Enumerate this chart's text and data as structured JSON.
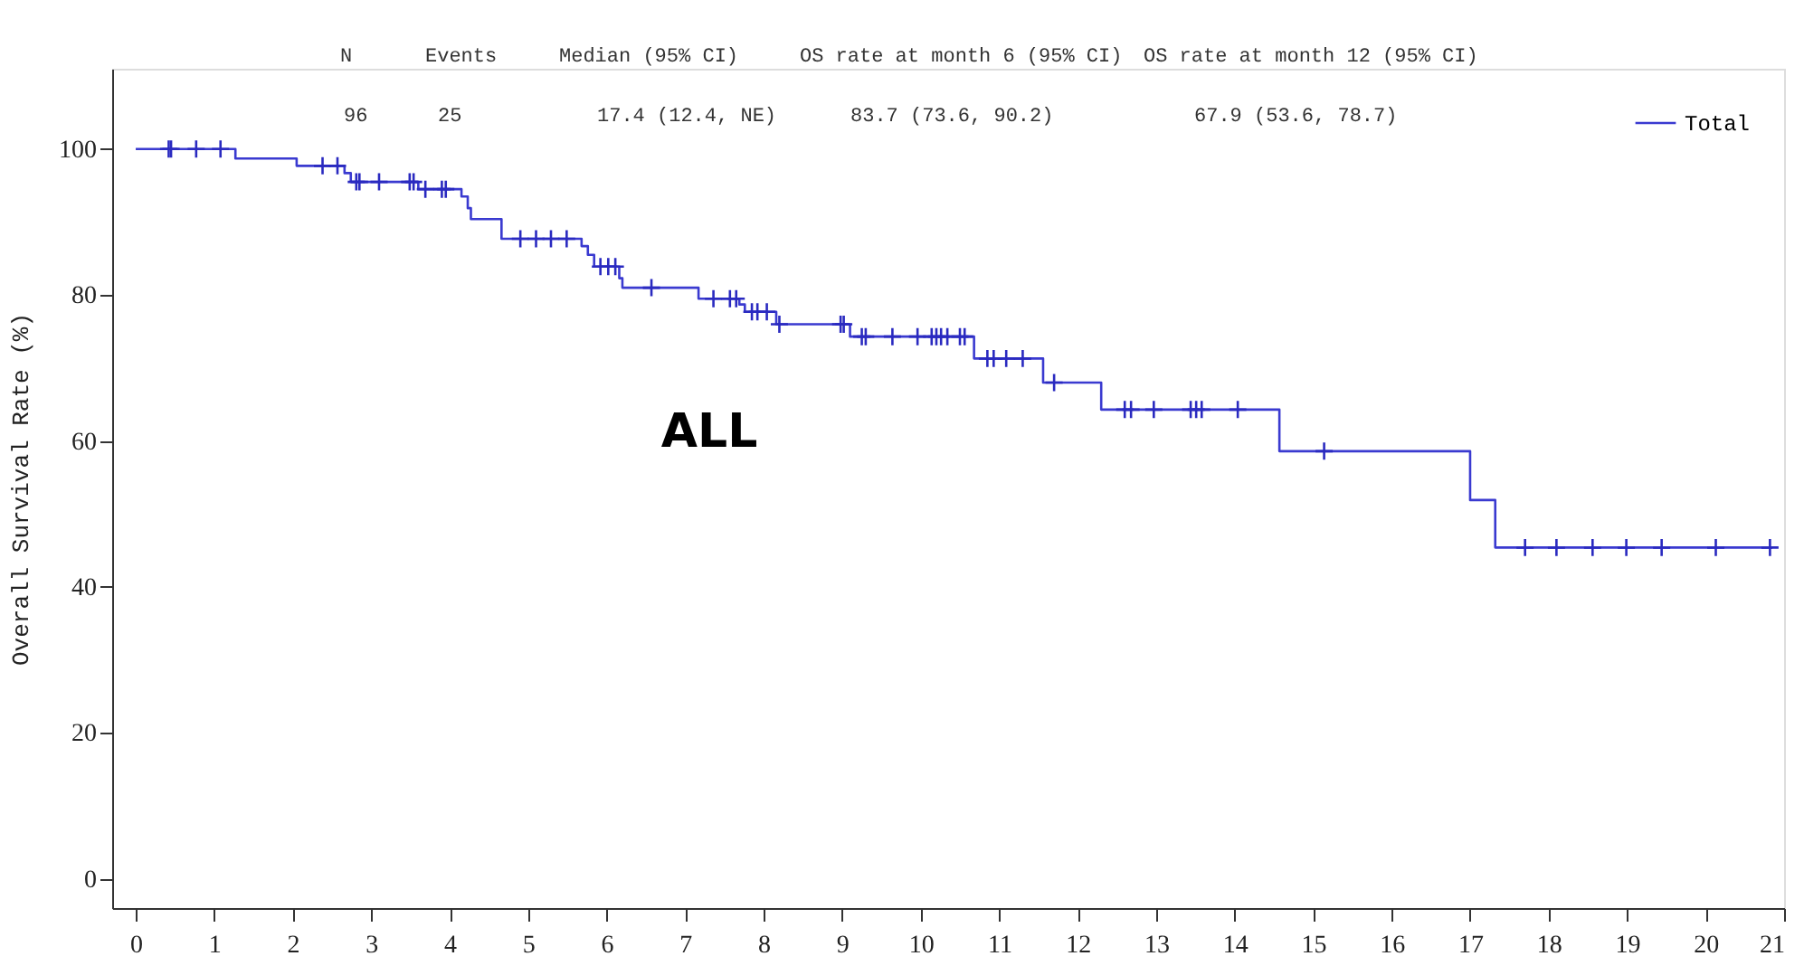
{
  "chart_data": {
    "type": "step",
    "ylabel": "Overall Survival Rate (%)",
    "xlim": [
      -0.3,
      21
    ],
    "xticks": [
      0,
      1,
      2,
      3,
      4,
      5,
      6,
      7,
      8,
      9,
      10,
      11,
      12,
      13,
      14,
      15,
      16,
      17,
      18,
      19,
      20,
      21
    ],
    "ylim": [
      -4,
      111
    ],
    "yticks": [
      0,
      20,
      40,
      60,
      80,
      100
    ],
    "grid": false,
    "legend": "top right",
    "annotations": [
      "N",
      "Events",
      "Median (95% CI)",
      "OS rate at month 6 (95% CI)",
      "OS rate at month 12 (95% CI)",
      "96",
      "25",
      "17.4 (12.4, NE)",
      "83.7 (73.6, 90.2)",
      "67.9 (53.6, 78.7)",
      "ALL"
    ],
    "series": [
      {
        "name": "Total",
        "color": "#3a3ad0",
        "line_style": "solid",
        "x": [
          0,
          1.27,
          2.05,
          2.66,
          2.74,
          3.6,
          4.15,
          4.23,
          4.27,
          4.66,
          5.68,
          5.76,
          5.84,
          6.16,
          6.2,
          7.17,
          7.69,
          7.76,
          8.16,
          9.1,
          10.68,
          11.56,
          12.3,
          14.57,
          17.0,
          17.32,
          20.85
        ],
        "values": [
          100,
          98.7,
          97.7,
          96.7,
          95.5,
          94.5,
          93.5,
          91.9,
          90.4,
          87.7,
          86.7,
          85.5,
          83.9,
          82.3,
          81.0,
          79.5,
          78.7,
          77.7,
          76.0,
          74.3,
          71.3,
          68.0,
          64.3,
          58.6,
          51.9,
          45.4,
          45.4
        ]
      },
      {
        "type": "scatter",
        "marker": "cross",
        "color": "#2a2ac0",
        "x": [
          0.42,
          0.45,
          0.77,
          1.08,
          2.38,
          2.57,
          2.81,
          2.85,
          3.1,
          3.49,
          3.54,
          3.69,
          3.9,
          3.95,
          4.9,
          5.1,
          5.29,
          5.49,
          5.92,
          6.02,
          6.11,
          6.57,
          7.36,
          7.57,
          7.65,
          7.85,
          7.92,
          8.04,
          8.2,
          8.98,
          9.02,
          9.25,
          9.3,
          9.64,
          9.96,
          10.14,
          10.2,
          10.26,
          10.34,
          10.5,
          10.56,
          10.85,
          10.93,
          11.09,
          11.3,
          11.7,
          12.6,
          12.68,
          12.97,
          13.44,
          13.51,
          13.58,
          14.04,
          15.14,
          17.7,
          18.1,
          18.56,
          18.99,
          19.44,
          20.13,
          20.82
        ],
        "values": [
          100,
          100,
          100,
          100,
          97.7,
          97.7,
          95.5,
          95.5,
          95.5,
          95.5,
          95.5,
          94.5,
          94.5,
          94.5,
          87.7,
          87.7,
          87.7,
          87.7,
          83.9,
          83.9,
          83.9,
          81.0,
          79.5,
          79.5,
          79.5,
          77.7,
          77.7,
          77.7,
          76.0,
          76.0,
          76.0,
          74.3,
          74.3,
          74.3,
          74.3,
          74.3,
          74.3,
          74.3,
          74.3,
          74.3,
          74.3,
          71.3,
          71.3,
          71.3,
          71.3,
          68.0,
          64.3,
          64.3,
          64.3,
          64.3,
          64.3,
          64.3,
          64.3,
          58.6,
          45.4,
          45.4,
          45.4,
          45.4,
          45.4,
          45.4,
          45.4
        ]
      }
    ]
  }
}
